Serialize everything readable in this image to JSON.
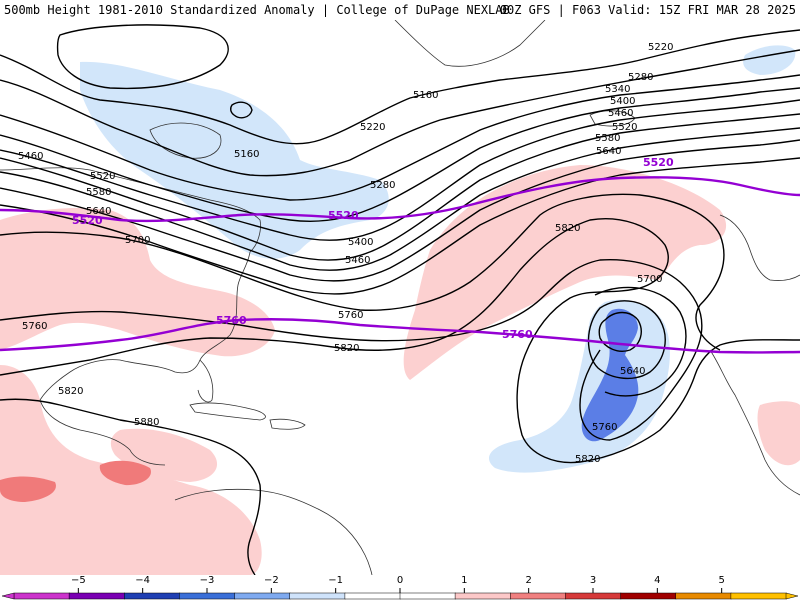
{
  "header": {
    "left_title": "500mb Height 1981-2010 Standardized Anomaly | College of DuPage NEXLAB",
    "right_title": "00Z GFS | F063 Valid: 15Z FRI MAR 28 2025"
  },
  "contour_labels": {
    "h5160a": "5160",
    "h5160b": "5160",
    "h5220a": "5220",
    "h5220b": "5220",
    "h5280a": "5280",
    "h5280b": "5280",
    "h5340": "5340",
    "h5400a": "5400",
    "h5400b": "5400",
    "h5460a": "5460",
    "h5460b": "5460",
    "h5460c": "5460",
    "h5520a": "5520",
    "h5520b": "5520",
    "h5580a": "5580",
    "h5580b": "5580",
    "h5640a": "5640",
    "h5640b": "5640",
    "h5640c": "5640",
    "h5700a": "5700",
    "h5700b": "5700",
    "h5760a": "5760",
    "h5760b": "5760",
    "h5760c": "5760",
    "h5820a": "5820",
    "h5820b": "5820",
    "h5820c": "5820",
    "h5820d": "5820",
    "h5880": "5880"
  },
  "climo_labels": {
    "c5520a": "5520",
    "c5520b": "5520",
    "c5520c": "5520",
    "c5760a": "5760",
    "c5760b": "5760"
  },
  "colorbar": {
    "ticks": [
      "−5",
      "−4",
      "−3",
      "−2",
      "−1",
      "0",
      "1",
      "2",
      "3",
      "4",
      "5"
    ],
    "colors": [
      "#cc33cc",
      "#7a00b3",
      "#1f3fb3",
      "#3a6fd8",
      "#7faaf0",
      "#cfe3fb",
      "#ffffff",
      "#ffffff",
      "#fcc8c8",
      "#f08080",
      "#d63a3a",
      "#a00000",
      "#e88a00",
      "#ffc000"
    ]
  },
  "colors": {
    "neg1": "#d2e6fa",
    "neg2": "#5b7ee6",
    "pos1": "#fcd0d0",
    "pos2": "#f07a7a",
    "climo_line": "#9400d3"
  }
}
